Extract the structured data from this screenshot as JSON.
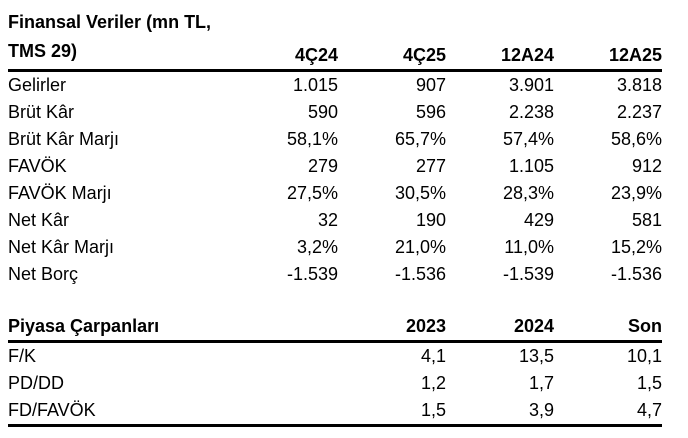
{
  "colors": {
    "text": "#000000",
    "background": "#ffffff",
    "rule": "#000000"
  },
  "financial_table": {
    "title_line1": "Finansal Veriler (mn TL,",
    "title_line2": "TMS 29)",
    "columns": [
      "4Ç24",
      "4Ç25",
      "12A24",
      "12A25"
    ],
    "rows": [
      {
        "label": "Gelirler",
        "values": [
          "1.015",
          "907",
          "3.901",
          "3.818"
        ]
      },
      {
        "label": "Brüt Kâr",
        "values": [
          "590",
          "596",
          "2.238",
          "2.237"
        ]
      },
      {
        "label": "Brüt Kâr Marjı",
        "values": [
          "58,1%",
          "65,7%",
          "57,4%",
          "58,6%"
        ]
      },
      {
        "label": "FAVÖK",
        "values": [
          "279",
          "277",
          "1.105",
          "912"
        ]
      },
      {
        "label": "FAVÖK Marjı",
        "values": [
          "27,5%",
          "30,5%",
          "28,3%",
          "23,9%"
        ]
      },
      {
        "label": "Net Kâr",
        "values": [
          "32",
          "190",
          "429",
          "581"
        ]
      },
      {
        "label": "Net Kâr Marjı",
        "values": [
          "3,2%",
          "21,0%",
          "11,0%",
          "15,2%"
        ]
      },
      {
        "label": "Net Borç",
        "values": [
          "-1.539",
          "-1.536",
          "-1.539",
          "-1.536"
        ]
      }
    ]
  },
  "multiples_table": {
    "title": "Piyasa Çarpanları",
    "columns": [
      "",
      "2023",
      "2024",
      "Son"
    ],
    "rows": [
      {
        "label": "F/K",
        "values": [
          "",
          "4,1",
          "13,5",
          "10,1"
        ]
      },
      {
        "label": "PD/DD",
        "values": [
          "",
          "1,2",
          "1,7",
          "1,5"
        ]
      },
      {
        "label": "FD/FAVÖK",
        "values": [
          "",
          "1,5",
          "3,9",
          "4,7"
        ]
      }
    ]
  }
}
